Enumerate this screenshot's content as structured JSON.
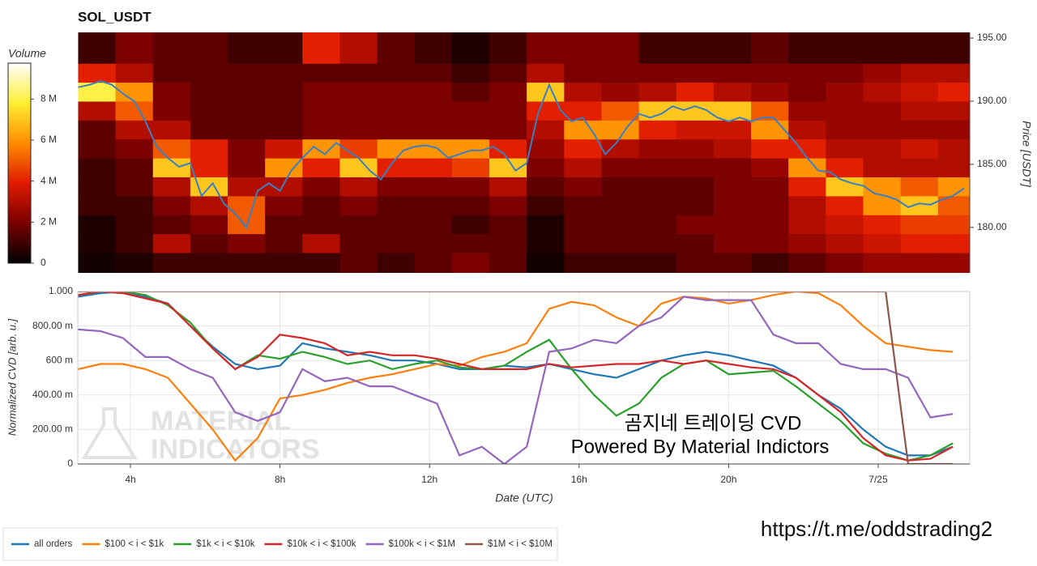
{
  "chart_data": [
    {
      "type": "heatmap",
      "title": "SOL_USDT",
      "ylabel": "Price [USDT]",
      "colorbar_title": "Volume",
      "xlim": [
        2.59,
        26.45
      ],
      "ylim": [
        176.4,
        195.45
      ],
      "yticks": [
        {
          "value": 180,
          "label": "180.00"
        },
        {
          "value": 185,
          "label": "185.00"
        },
        {
          "value": 190,
          "label": "190.00"
        },
        {
          "value": 195,
          "label": "195.00"
        }
      ],
      "zlim": [
        0,
        9.75
      ],
      "zticks": [
        0,
        {
          "value": 2,
          "label": "2 M"
        },
        {
          "value": 4,
          "label": "4 M"
        },
        {
          "value": 6,
          "label": "6 M"
        },
        {
          "value": 8,
          "label": "8 M"
        }
      ],
      "colorscale": [
        "#000000",
        "#7a0000",
        "#e01a00",
        "#ff8c00",
        "#ffee33",
        "#ffffff"
      ],
      "x_edges": [
        2.6,
        3.6,
        4.6,
        5.6,
        6.6,
        7.6,
        8.6,
        9.6,
        10.6,
        11.6,
        12.6,
        13.6,
        14.6,
        15.6,
        16.6,
        17.6,
        18.6,
        19.6,
        20.6,
        21.6,
        22.6,
        23.6,
        24.6,
        25.6,
        26.45
      ],
      "y_edges": [
        176.4,
        178,
        179.5,
        181,
        182.5,
        184,
        185.5,
        187,
        188.5,
        190,
        191.5,
        193,
        195.45
      ],
      "z": [
        [
          0.3,
          0.5,
          1,
          1,
          1,
          1,
          1,
          1.5,
          1,
          1.5,
          2,
          1.5,
          0.3,
          1,
          1,
          1,
          1.5,
          1.5,
          1,
          1.5,
          2,
          2.5,
          2.5,
          2.5
        ],
        [
          0.5,
          1,
          3,
          1.5,
          2,
          1.5,
          3,
          1.5,
          1.5,
          1.5,
          1.5,
          1.5,
          0.5,
          1.5,
          1.5,
          1.5,
          1.5,
          2,
          2,
          2.5,
          3,
          3.5,
          4,
          4
        ],
        [
          0.5,
          1,
          1.5,
          2,
          5,
          1.5,
          1.5,
          1.5,
          1.5,
          1.5,
          1,
          1.5,
          0.5,
          1.5,
          1.5,
          1.5,
          2,
          2,
          2,
          3,
          3.5,
          4,
          4.5,
          4.5
        ],
        [
          1,
          1,
          2,
          3,
          5,
          2,
          1.5,
          2,
          1.5,
          1.5,
          1.5,
          2,
          1,
          1.5,
          1.5,
          1.5,
          1.5,
          2,
          2,
          3,
          4,
          6,
          7,
          5
        ],
        [
          1,
          1.5,
          3,
          7,
          3,
          3,
          2,
          3,
          2,
          2,
          2,
          3,
          1.5,
          2,
          1.5,
          1.5,
          1.5,
          2,
          2,
          4,
          7,
          6,
          5,
          6
        ],
        [
          1,
          1.5,
          7,
          4,
          2,
          6,
          4,
          7,
          4,
          4,
          4.5,
          7,
          2,
          3,
          2,
          2,
          2,
          2,
          2.5,
          6,
          4,
          3,
          3,
          3
        ],
        [
          1.5,
          2,
          5,
          4,
          2,
          3.5,
          6,
          4.5,
          6,
          6,
          6,
          4,
          2.5,
          4,
          3,
          2.5,
          2.5,
          3,
          4,
          4,
          3,
          3,
          3.5,
          3
        ],
        [
          1.5,
          3,
          3,
          1.5,
          1.5,
          1.5,
          2,
          2,
          2,
          2,
          2,
          2,
          3,
          6,
          6,
          4,
          3.5,
          3.5,
          6,
          3,
          2.5,
          2.5,
          2.5,
          2.5
        ],
        [
          3,
          5,
          2,
          1.5,
          1.5,
          1.5,
          2,
          2,
          2,
          2,
          2,
          2,
          4,
          4,
          5,
          7,
          7,
          7,
          5,
          2.5,
          2.5,
          2.5,
          3,
          3
        ],
        [
          8,
          6,
          2,
          1.5,
          1.5,
          1.5,
          2,
          2,
          2,
          2,
          1.5,
          2,
          7,
          3,
          2.5,
          3,
          4,
          3,
          2.5,
          2,
          2.5,
          3,
          3.5,
          4
        ],
        [
          4,
          3,
          1.5,
          1.5,
          1.5,
          1.5,
          1.5,
          1.5,
          1.5,
          1.5,
          1,
          1.5,
          3,
          2,
          2,
          2,
          2,
          2,
          2,
          2,
          2,
          2.5,
          3,
          3
        ],
        [
          1,
          2,
          1.5,
          1.5,
          1,
          1,
          4,
          3,
          1.5,
          1,
          0.5,
          1,
          2,
          2,
          2,
          1,
          1,
          1,
          1.5,
          1,
          1,
          1,
          1,
          1
        ]
      ],
      "price_line": {
        "color": "#3a7fc0",
        "x": [
          2.6,
          2.9,
          3.2,
          3.5,
          3.8,
          4.1,
          4.4,
          4.7,
          5.0,
          5.3,
          5.6,
          5.9,
          6.2,
          6.5,
          6.8,
          7.1,
          7.4,
          7.7,
          8.0,
          8.3,
          8.6,
          8.9,
          9.2,
          9.5,
          9.8,
          10.1,
          10.4,
          10.7,
          11.0,
          11.3,
          11.6,
          11.9,
          12.2,
          12.5,
          12.8,
          13.1,
          13.4,
          13.7,
          14.0,
          14.3,
          14.6,
          14.9,
          15.2,
          15.5,
          15.8,
          16.1,
          16.4,
          16.7,
          17.0,
          17.3,
          17.6,
          17.9,
          18.2,
          18.5,
          18.8,
          19.1,
          19.4,
          19.7,
          20.0,
          20.3,
          20.6,
          20.9,
          21.2,
          21.5,
          21.8,
          22.1,
          22.4,
          22.7,
          23.0,
          23.3,
          23.6,
          23.9,
          24.2,
          24.5,
          24.8,
          25.1,
          25.4,
          25.7,
          26.0,
          26.3
        ],
        "values": [
          191.1,
          191.3,
          191.6,
          191.3,
          190.6,
          190.0,
          188.4,
          186.4,
          185.5,
          184.8,
          185.1,
          182.5,
          183.5,
          181.9,
          181.1,
          180.0,
          182.9,
          183.5,
          182.9,
          184.5,
          185.5,
          186.4,
          185.8,
          186.7,
          186.1,
          185.5,
          184.5,
          183.8,
          185.1,
          186.1,
          186.4,
          186.5,
          186.3,
          185.5,
          185.8,
          186.1,
          186.1,
          186.4,
          185.8,
          184.5,
          185.1,
          189.0,
          191.3,
          189.3,
          188.4,
          188.7,
          187.4,
          185.8,
          186.7,
          188.0,
          189.0,
          188.7,
          189.0,
          189.6,
          189.3,
          189.6,
          189.3,
          188.7,
          188.4,
          188.7,
          188.4,
          188.7,
          188.7,
          187.7,
          186.7,
          185.5,
          184.5,
          184.4,
          183.8,
          183.5,
          183.3,
          182.7,
          182.5,
          182.2,
          181.6,
          181.9,
          181.8,
          182.2,
          182.5,
          183.1
        ]
      }
    },
    {
      "type": "line",
      "xlabel": "Date (UTC)",
      "ylabel": "Normalized CVD [arb. u.]",
      "grid": true,
      "legend": "bottom",
      "xlim": [
        2.59,
        26.45
      ],
      "ylim": [
        0,
        1
      ],
      "xticks": [
        {
          "value": 4,
          "label": "4h"
        },
        {
          "value": 8,
          "label": "8h"
        },
        {
          "value": 12,
          "label": "12h"
        },
        {
          "value": 16,
          "label": "16h"
        },
        {
          "value": 20,
          "label": "20h"
        },
        {
          "value": 24,
          "label": "7/25"
        }
      ],
      "yticks": [
        0,
        {
          "value": 0.2,
          "label": "200.00 m"
        },
        {
          "value": 0.4,
          "label": "400.00 m"
        },
        {
          "value": 0.6,
          "label": "600 m"
        },
        {
          "value": 0.8,
          "label": "800.00 m"
        },
        {
          "value": 1,
          "label": "1.000"
        }
      ],
      "x": [
        2.6,
        3.2,
        3.8,
        4.4,
        5.0,
        5.6,
        6.2,
        6.8,
        7.4,
        8.0,
        8.6,
        9.2,
        9.8,
        10.4,
        11.0,
        11.6,
        12.2,
        12.8,
        13.4,
        14.0,
        14.6,
        15.2,
        15.8,
        16.4,
        17.0,
        17.6,
        18.2,
        18.8,
        19.4,
        20.0,
        20.6,
        21.2,
        21.8,
        22.4,
        23.0,
        23.6,
        24.2,
        24.8,
        25.4,
        26.0
      ],
      "series": [
        {
          "name": "all orders",
          "color": "#1f77b4",
          "values": [
            0.97,
            0.99,
            1.0,
            0.97,
            0.93,
            0.8,
            0.68,
            0.58,
            0.55,
            0.57,
            0.7,
            0.67,
            0.65,
            0.63,
            0.6,
            0.6,
            0.58,
            0.55,
            0.55,
            0.57,
            0.56,
            0.58,
            0.55,
            0.52,
            0.5,
            0.55,
            0.6,
            0.63,
            0.65,
            0.63,
            0.6,
            0.57,
            0.5,
            0.4,
            0.32,
            0.2,
            0.1,
            0.05,
            0.05,
            0.1
          ]
        },
        {
          "name": "$100 < i < $1k",
          "color": "#ff7f0e",
          "values": [
            0.55,
            0.58,
            0.58,
            0.55,
            0.5,
            0.35,
            0.2,
            0.02,
            0.15,
            0.38,
            0.4,
            0.43,
            0.47,
            0.5,
            0.52,
            0.55,
            0.58,
            0.57,
            0.62,
            0.65,
            0.7,
            0.9,
            0.94,
            0.92,
            0.85,
            0.8,
            0.93,
            0.97,
            0.96,
            0.93,
            0.95,
            0.98,
            1.0,
            0.99,
            0.92,
            0.8,
            0.7,
            0.68,
            0.66,
            0.65
          ]
        },
        {
          "name": "$1k < i < $10k",
          "color": "#2ca02c",
          "values": [
            0.98,
            1.0,
            1.0,
            0.98,
            0.92,
            0.82,
            0.67,
            0.55,
            0.63,
            0.61,
            0.65,
            0.62,
            0.58,
            0.6,
            0.55,
            0.58,
            0.6,
            0.56,
            0.55,
            0.57,
            0.65,
            0.72,
            0.55,
            0.4,
            0.28,
            0.35,
            0.5,
            0.58,
            0.6,
            0.52,
            0.53,
            0.54,
            0.45,
            0.35,
            0.25,
            0.12,
            0.06,
            0.02,
            0.05,
            0.12
          ]
        },
        {
          "name": "$10k < i < $100k",
          "color": "#d62728",
          "values": [
            0.98,
            1.0,
            0.99,
            0.96,
            0.93,
            0.8,
            0.67,
            0.55,
            0.62,
            0.75,
            0.73,
            0.7,
            0.63,
            0.65,
            0.63,
            0.63,
            0.61,
            0.58,
            0.55,
            0.55,
            0.55,
            0.58,
            0.56,
            0.57,
            0.58,
            0.58,
            0.6,
            0.58,
            0.6,
            0.58,
            0.56,
            0.55,
            0.5,
            0.4,
            0.3,
            0.15,
            0.05,
            0.02,
            0.03,
            0.1
          ]
        },
        {
          "name": "$100k < i < $1M",
          "color": "#9467bd",
          "values": [
            0.78,
            0.77,
            0.73,
            0.62,
            0.62,
            0.55,
            0.5,
            0.3,
            0.25,
            0.3,
            0.55,
            0.48,
            0.5,
            0.45,
            0.45,
            0.4,
            0.35,
            0.05,
            0.1,
            0.0,
            0.1,
            0.65,
            0.67,
            0.72,
            0.7,
            0.8,
            0.85,
            0.97,
            0.95,
            0.95,
            0.95,
            0.75,
            0.7,
            0.7,
            0.58,
            0.55,
            0.55,
            0.5,
            0.27,
            0.29
          ]
        },
        {
          "name": "$1M < i < $10M",
          "color": "#8c564b",
          "values": [
            1,
            1,
            1,
            1,
            1,
            1,
            1,
            1,
            1,
            1,
            1,
            1,
            1,
            1,
            1,
            1,
            1,
            1,
            1,
            1,
            1,
            1,
            1,
            1,
            1,
            1,
            1,
            1,
            1,
            1,
            1,
            1,
            1,
            1,
            1,
            1,
            1,
            0,
            0,
            0
          ]
        }
      ],
      "annotations": [
        "MATERIAL",
        "INDICATORS",
        "곰지네 트레이딩 CVD",
        "Powered By Material Indictors"
      ]
    }
  ],
  "footer_link": "https://t.me/oddstrading2"
}
